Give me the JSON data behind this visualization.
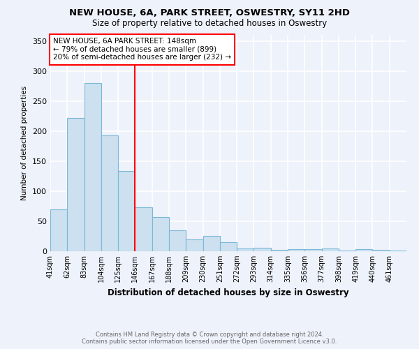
{
  "title": "NEW HOUSE, 6A, PARK STREET, OSWESTRY, SY11 2HD",
  "subtitle": "Size of property relative to detached houses in Oswestry",
  "xlabel": "Distribution of detached houses by size in Oswestry",
  "ylabel": "Number of detached properties",
  "categories": [
    "41sqm",
    "62sqm",
    "83sqm",
    "104sqm",
    "125sqm",
    "146sqm",
    "167sqm",
    "188sqm",
    "209sqm",
    "230sqm",
    "251sqm",
    "272sqm",
    "293sqm",
    "314sqm",
    "335sqm",
    "356sqm",
    "377sqm",
    "398sqm",
    "419sqm",
    "440sqm",
    "461sqm"
  ],
  "values": [
    70,
    222,
    280,
    193,
    133,
    73,
    57,
    35,
    20,
    25,
    15,
    5,
    6,
    2,
    3,
    4,
    5,
    1,
    3,
    2,
    1
  ],
  "bar_color": "#cce0f0",
  "bar_edge_color": "#7ab8d8",
  "vline_index": 5,
  "vline_color": "red",
  "annotation_text": "NEW HOUSE, 6A PARK STREET: 148sqm\n← 79% of detached houses are smaller (899)\n20% of semi-detached houses are larger (232) →",
  "annotation_box_color": "white",
  "annotation_box_edge_color": "red",
  "footer_text": "Contains HM Land Registry data © Crown copyright and database right 2024.\nContains public sector information licensed under the Open Government Licence v3.0.",
  "ylim": [
    0,
    360
  ],
  "yticks": [
    0,
    50,
    100,
    150,
    200,
    250,
    300,
    350
  ],
  "background_color": "#eef2fb",
  "grid_color": "#ffffff"
}
